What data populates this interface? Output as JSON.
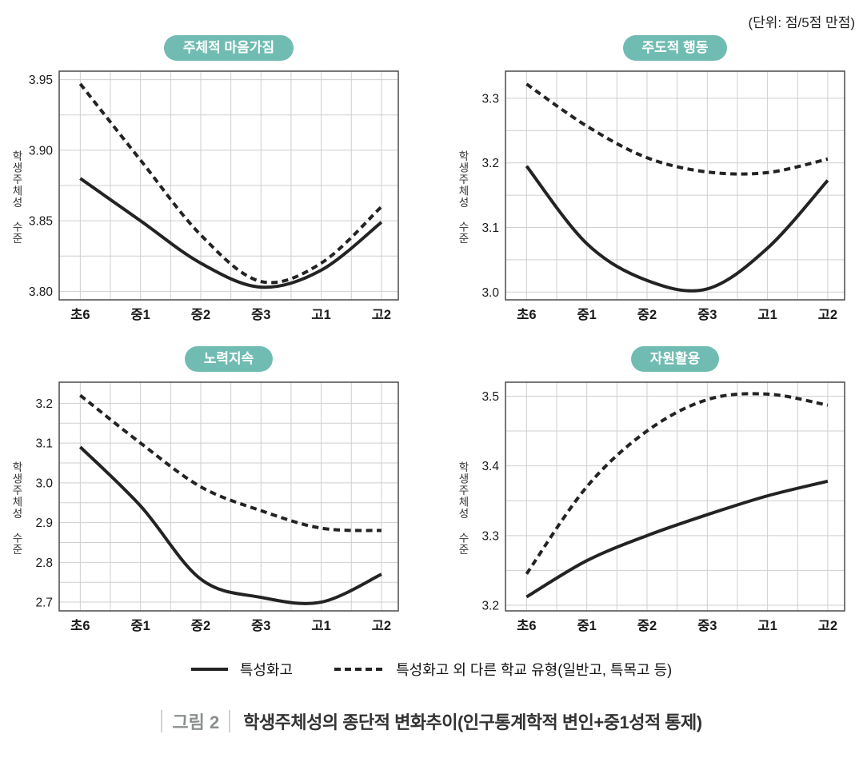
{
  "unit_label": "(단위: 점/5점 만점)",
  "y_axis_label": "학생주체성 수준",
  "legend": [
    {
      "style": "solid",
      "label": "특성화고"
    },
    {
      "style": "dashed",
      "label": "특성화고 외 다른 학교 유형(일반고, 특목고 등)"
    }
  ],
  "caption": {
    "tag": "그림 2",
    "text": "학생주체성의 종단적 변화추이(인구통계학적 변인+중1성적 통제)"
  },
  "colors": {
    "badge": "#71bcb2",
    "line": "#232323",
    "grid": "#cfcfcf",
    "axis": "#4a4a4a",
    "tick_text": "#1a1a1a",
    "caption_tag": "#8a8f8e"
  },
  "chart_data": [
    {
      "type": "line",
      "title": "주체적 마음가짐",
      "categories": [
        "초6",
        "중1",
        "중2",
        "중3",
        "고1",
        "고2"
      ],
      "ylim": [
        3.794,
        3.956
      ],
      "yticks": [
        3.8,
        3.85,
        3.9,
        3.95
      ],
      "ytick_labels": [
        "3.80",
        "3.85",
        "3.90",
        "3.95"
      ],
      "minor_step": 0.025,
      "grid": true,
      "series": [
        {
          "name": "특성화고",
          "style": "solid",
          "values": [
            3.88,
            3.85,
            3.82,
            3.803,
            3.815,
            3.849
          ]
        },
        {
          "name": "특성화고 외 다른 학교 유형(일반고, 특목고 등)",
          "style": "dashed",
          "values": [
            3.947,
            3.893,
            3.84,
            3.807,
            3.82,
            3.86
          ]
        }
      ]
    },
    {
      "type": "line",
      "title": "주도적 행동",
      "categories": [
        "초6",
        "중1",
        "중2",
        "중3",
        "고1",
        "고2"
      ],
      "ylim": [
        2.988,
        3.342
      ],
      "yticks": [
        3.0,
        3.1,
        3.2,
        3.3
      ],
      "ytick_labels": [
        "3.0",
        "3.1",
        "3.2",
        "3.3"
      ],
      "minor_step": 0.05,
      "grid": true,
      "series": [
        {
          "name": "특성화고",
          "style": "solid",
          "values": [
            3.195,
            3.075,
            3.018,
            3.005,
            3.068,
            3.173
          ]
        },
        {
          "name": "특성화고 외 다른 학교 유형(일반고, 특목고 등)",
          "style": "dashed",
          "values": [
            3.322,
            3.257,
            3.208,
            3.186,
            3.185,
            3.206
          ]
        }
      ]
    },
    {
      "type": "line",
      "title": "노력지속",
      "categories": [
        "초6",
        "중1",
        "중2",
        "중3",
        "고1",
        "고2"
      ],
      "ylim": [
        2.678,
        3.253
      ],
      "yticks": [
        2.7,
        2.8,
        2.9,
        3.0,
        3.1,
        3.2
      ],
      "ytick_labels": [
        "2.7",
        "2.8",
        "2.9",
        "3.0",
        "3.1",
        "3.2"
      ],
      "minor_step": 0.05,
      "grid": true,
      "series": [
        {
          "name": "특성화고",
          "style": "solid",
          "values": [
            3.09,
            2.942,
            2.758,
            2.712,
            2.7,
            2.77
          ]
        },
        {
          "name": "특성화고 외 다른 학교 유형(일반고, 특목고 등)",
          "style": "dashed",
          "values": [
            3.22,
            3.1,
            2.99,
            2.93,
            2.886,
            2.88
          ]
        }
      ]
    },
    {
      "type": "line",
      "title": "자원활용",
      "categories": [
        "초6",
        "중1",
        "중2",
        "중3",
        "고1",
        "고2"
      ],
      "ylim": [
        3.192,
        3.52
      ],
      "yticks": [
        3.2,
        3.3,
        3.4,
        3.5
      ],
      "ytick_labels": [
        "3.2",
        "3.3",
        "3.4",
        "3.5"
      ],
      "minor_step": 0.05,
      "grid": true,
      "series": [
        {
          "name": "특성화고",
          "style": "solid",
          "values": [
            3.212,
            3.264,
            3.3,
            3.33,
            3.357,
            3.378
          ]
        },
        {
          "name": "특성화고 외 다른 학교 유형(일반고, 특목고 등)",
          "style": "dashed",
          "values": [
            3.245,
            3.37,
            3.45,
            3.495,
            3.503,
            3.487
          ]
        }
      ]
    }
  ]
}
